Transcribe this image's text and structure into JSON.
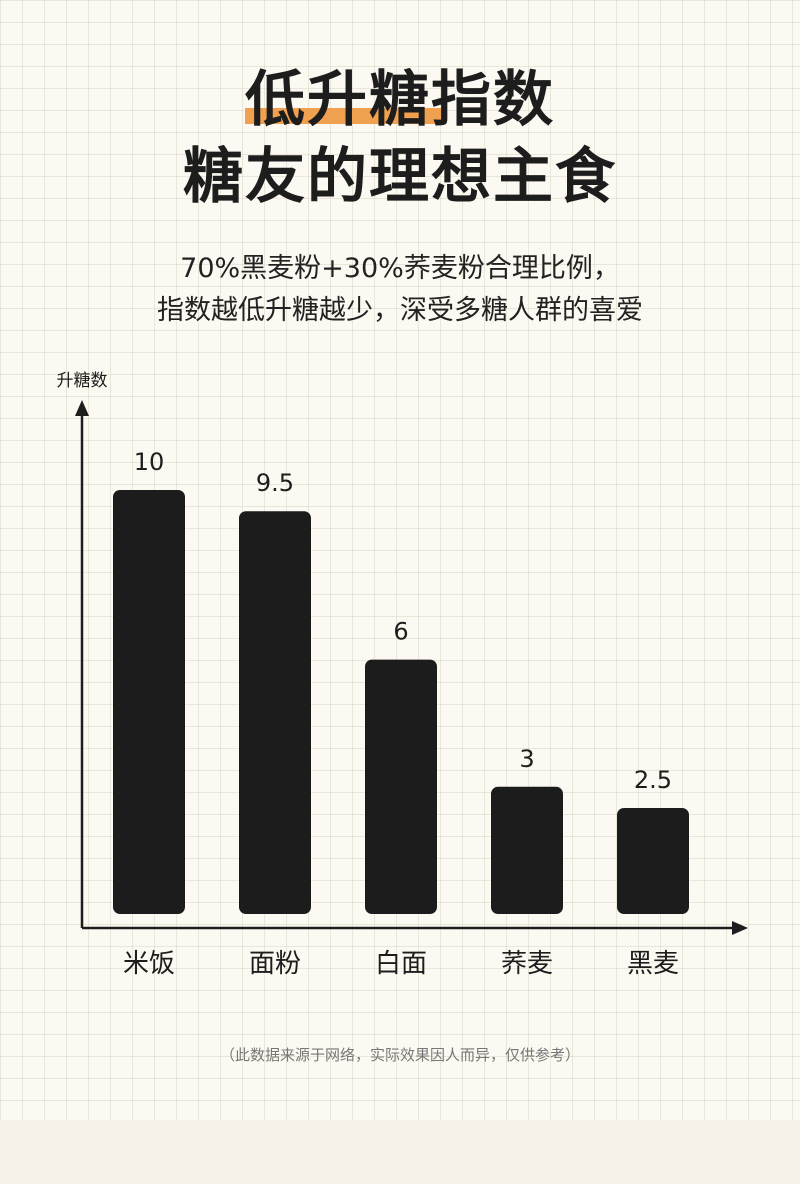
{
  "header": {
    "title_line1": "低升糖指数",
    "title_line2": "糖友的理想主食",
    "subtitle_line1": "70%黑麦粉+30%荞麦粉合理比例，",
    "subtitle_line2": "指数越低升糖越少，深受多糖人群的喜爱",
    "accent_color": "#f0a14f"
  },
  "chart_data": {
    "type": "bar",
    "ylabel": "升糖数",
    "categories": [
      "米饭",
      "面粉",
      "白面",
      "荞麦",
      "黑麦"
    ],
    "values": [
      10,
      9.5,
      6,
      3,
      2.5
    ],
    "value_labels": [
      "10",
      "9.5",
      "6",
      "3",
      "2.5"
    ],
    "bar_color": "#1c1c1c",
    "grid": false,
    "legend": "none"
  },
  "footnote": "（此数据来源于网络，实际效果因人而异，仅供参考）"
}
